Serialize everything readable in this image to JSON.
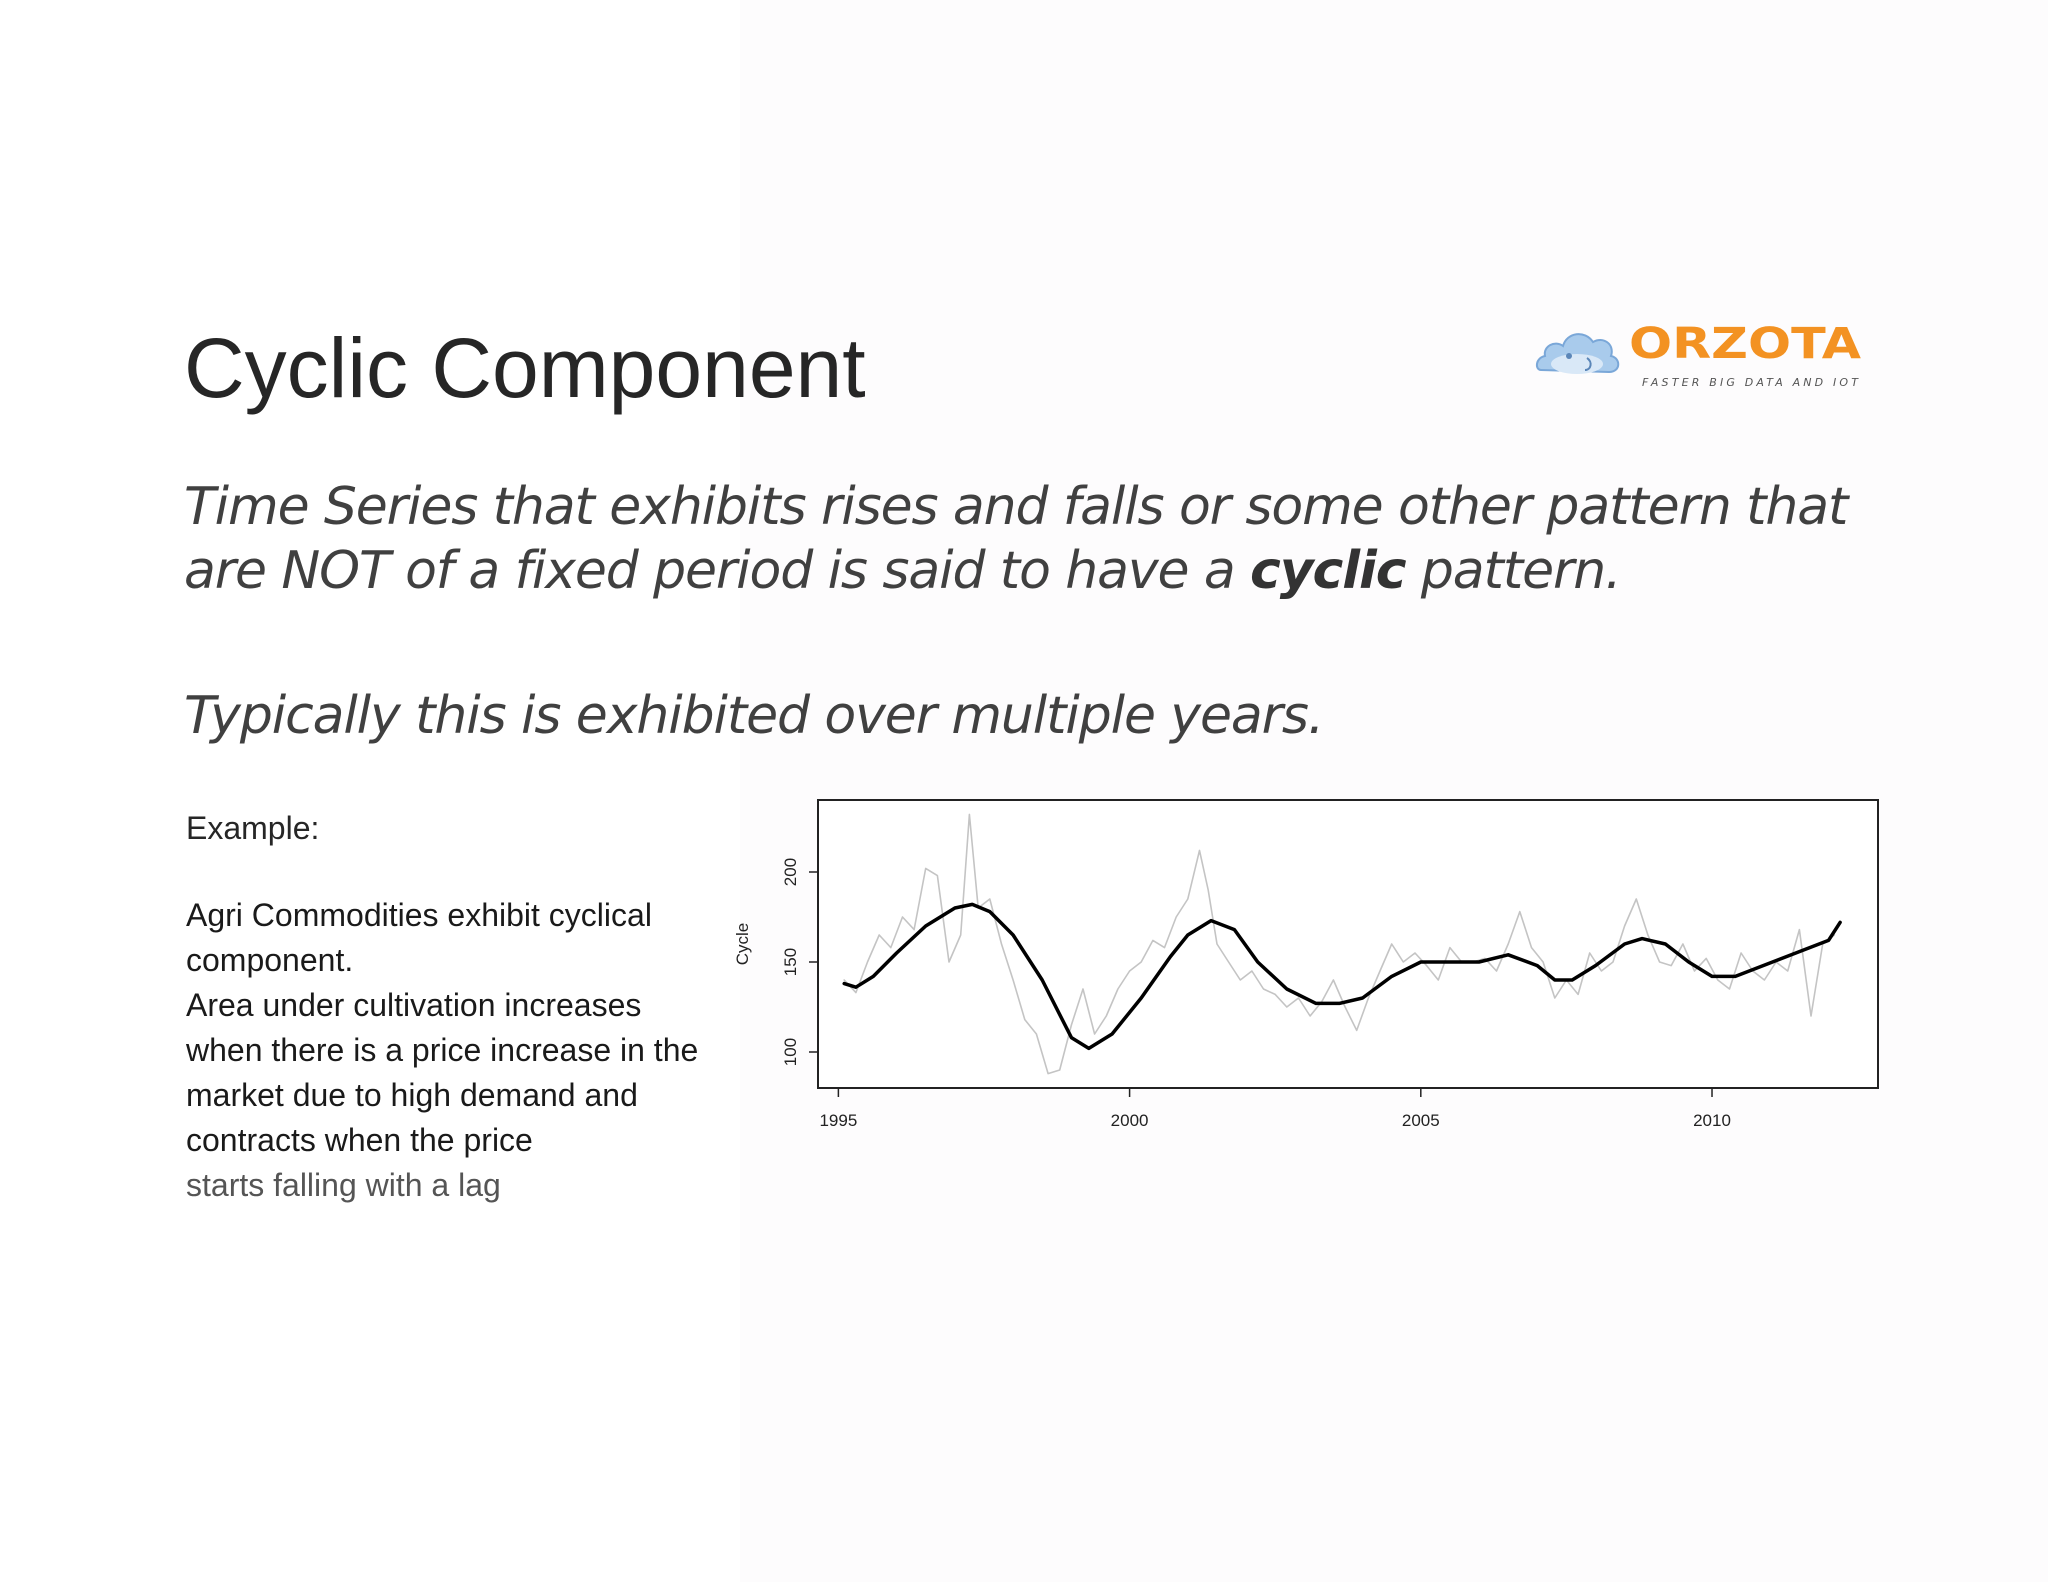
{
  "slide": {
    "title": "Cyclic Component",
    "lead_text_before": "Time Series that exhibits rises and falls or some other pattern that are NOT of a fixed period is said to have a ",
    "lead_text_bold": "cyclic",
    "lead_text_after": " pattern.",
    "lead2": "Typically this is exhibited over multiple years.",
    "example_label": "Example:",
    "example_lines": [
      "Agri Commodities exhibit cyclical component.",
      "Area under cultivation increases when there is a price increase in the market due to high demand and contracts when the price",
      "starts falling with a lag"
    ]
  },
  "logo": {
    "name": "ORZOTA",
    "tagline": "FASTER BIG DATA AND IOT",
    "brand_color": "#f39222",
    "cloud_color": "#a9cbec"
  },
  "chart_data": {
    "type": "line",
    "title": "",
    "xlabel": "",
    "ylabel": "Cycle",
    "xlim": [
      1994.65,
      2012.85
    ],
    "ylim": [
      80,
      240
    ],
    "xticks": [
      1995,
      2000,
      2005,
      2010
    ],
    "yticks": [
      100,
      150,
      200
    ],
    "grid": false,
    "series": [
      {
        "role": "raw",
        "color": "#c4c4c4",
        "x": [
          1995.1,
          1995.3,
          1995.5,
          1995.7,
          1995.9,
          1996.1,
          1996.3,
          1996.5,
          1996.7,
          1996.9,
          1997.1,
          1997.25,
          1997.4,
          1997.6,
          1997.8,
          1998.0,
          1998.2,
          1998.4,
          1998.6,
          1998.8,
          1999.0,
          1999.2,
          1999.4,
          1999.6,
          1999.8,
          2000.0,
          2000.2,
          2000.4,
          2000.6,
          2000.8,
          2001.0,
          2001.2,
          2001.35,
          2001.5,
          2001.7,
          2001.9,
          2002.1,
          2002.3,
          2002.5,
          2002.7,
          2002.9,
          2003.1,
          2003.3,
          2003.5,
          2003.7,
          2003.9,
          2004.1,
          2004.3,
          2004.5,
          2004.7,
          2004.9,
          2005.1,
          2005.3,
          2005.5,
          2005.7,
          2005.9,
          2006.1,
          2006.3,
          2006.5,
          2006.7,
          2006.9,
          2007.1,
          2007.3,
          2007.5,
          2007.7,
          2007.9,
          2008.1,
          2008.3,
          2008.5,
          2008.7,
          2008.9,
          2009.1,
          2009.3,
          2009.5,
          2009.7,
          2009.9,
          2010.1,
          2010.3,
          2010.5,
          2010.7,
          2010.9,
          2011.1,
          2011.3,
          2011.5,
          2011.7,
          2011.9,
          2012.1
        ],
        "y": [
          140,
          133,
          150,
          165,
          158,
          175,
          168,
          202,
          198,
          150,
          165,
          232,
          180,
          185,
          160,
          140,
          118,
          110,
          88,
          90,
          115,
          135,
          110,
          120,
          135,
          145,
          150,
          162,
          158,
          175,
          185,
          212,
          190,
          160,
          150,
          140,
          145,
          135,
          132,
          125,
          130,
          120,
          128,
          140,
          125,
          112,
          130,
          145,
          160,
          150,
          155,
          148,
          140,
          158,
          150,
          150,
          152,
          145,
          160,
          178,
          158,
          150,
          130,
          140,
          132,
          155,
          145,
          150,
          170,
          185,
          165,
          150,
          148,
          160,
          145,
          152,
          140,
          135,
          155,
          145,
          140,
          150,
          145,
          168,
          120,
          160,
          165
        ]
      },
      {
        "role": "smooth",
        "color": "#000000",
        "x": [
          1995.1,
          1995.3,
          1995.6,
          1996.0,
          1996.5,
          1997.0,
          1997.3,
          1997.6,
          1998.0,
          1998.5,
          1999.0,
          1999.3,
          1999.7,
          2000.2,
          2000.7,
          2001.0,
          2001.4,
          2001.8,
          2002.2,
          2002.7,
          2003.2,
          2003.6,
          2004.0,
          2004.5,
          2005.0,
          2005.5,
          2006.0,
          2006.5,
          2007.0,
          2007.3,
          2007.6,
          2008.0,
          2008.5,
          2008.8,
          2009.2,
          2009.6,
          2010.0,
          2010.4,
          2010.8,
          2011.2,
          2011.6,
          2012.0,
          2012.2
        ],
        "y": [
          138,
          136,
          142,
          155,
          170,
          180,
          182,
          178,
          165,
          140,
          108,
          102,
          110,
          130,
          153,
          165,
          173,
          168,
          150,
          135,
          127,
          127,
          130,
          142,
          150,
          150,
          150,
          154,
          148,
          140,
          140,
          148,
          160,
          163,
          160,
          150,
          142,
          142,
          147,
          152,
          157,
          162,
          172
        ]
      }
    ]
  }
}
